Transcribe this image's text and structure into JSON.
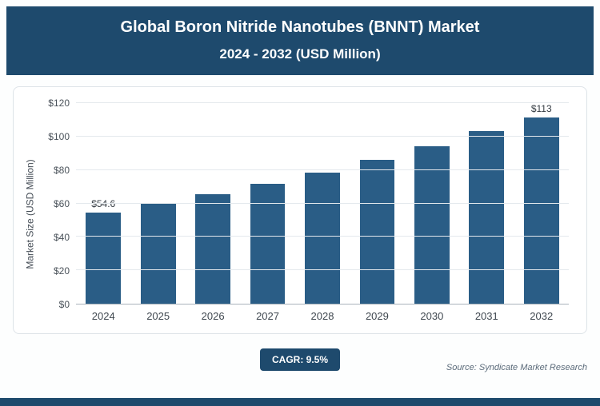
{
  "header": {
    "title_line1": "Global Boron Nitride Nanotubes (BNNT) Market",
    "title_line2": "2024 - 2032 (USD Million)"
  },
  "chart_data": {
    "type": "bar",
    "title": "Global Boron Nitride Nanotubes (BNNT) Market 2024 - 2032 (USD Million)",
    "categories": [
      "2024",
      "2025",
      "2026",
      "2027",
      "2028",
      "2029",
      "2030",
      "2031",
      "2032"
    ],
    "values": [
      54.6,
      59.8,
      65.5,
      71.7,
      78.5,
      86.0,
      94.1,
      103.1,
      113
    ],
    "data_labels": [
      "$54.6",
      "",
      "",
      "",
      "",
      "",
      "",
      "",
      "$113"
    ],
    "xlabel": "",
    "ylabel": "Market Size (USD Million)",
    "ylim": [
      0,
      120
    ],
    "yticks": [
      "$0",
      "$20",
      "$40",
      "$60",
      "$80",
      "$100",
      "$120"
    ],
    "grid": true,
    "legend": false,
    "bar_color": "#2a5d86"
  },
  "footer": {
    "cagr_label": "CAGR: 9.5%",
    "source": "Source: Syndicate Market Research"
  },
  "colors": {
    "banner": "#1e4a6d",
    "bar": "#2a5d86",
    "gridline": "#e4e9ed",
    "badge": "#1e4a6d"
  }
}
